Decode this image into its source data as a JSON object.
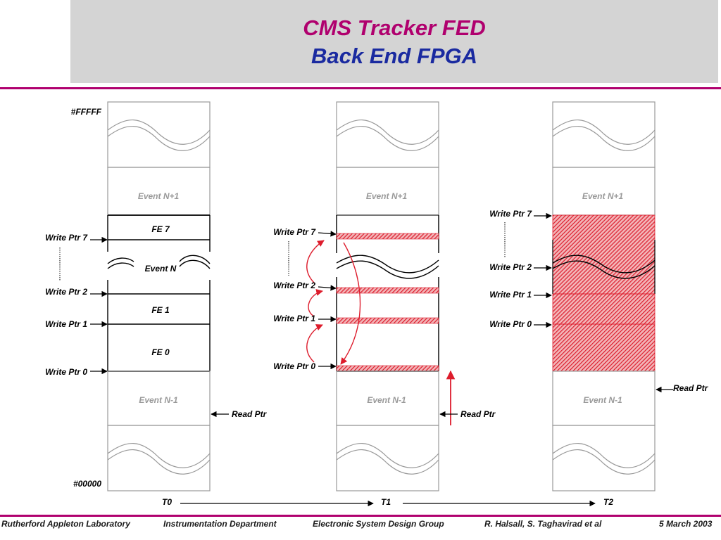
{
  "title": {
    "line1": "CMS Tracker FED",
    "line2": "Back End FPGA"
  },
  "colors": {
    "title_line1": "#b0006e",
    "title_line2": "#1a2aa0",
    "rule": "#b0006e",
    "hatch": "#dd1c2c",
    "arrow_red": "#dd1c2c"
  },
  "address": {
    "top": "#FFFFF",
    "bottom": "#00000"
  },
  "panels": [
    {
      "time": "T0",
      "event_next": "Event N+1",
      "event_prev": "Event N-1",
      "event_current": "Event N",
      "fe_labels": [
        "FE 7",
        "FE 1",
        "FE 0"
      ],
      "write_ptrs": [
        "Write Ptr 7",
        "Write Ptr 2",
        "Write Ptr 1",
        "Write Ptr 0"
      ],
      "read_ptr": "Read Ptr"
    },
    {
      "time": "T1",
      "event_next": "Event N+1",
      "event_prev": "Event N-1",
      "write_ptrs": [
        "Write Ptr 7",
        "Write Ptr 2",
        "Write Ptr 1",
        "Write Ptr 0"
      ],
      "read_ptr": "Read Ptr"
    },
    {
      "time": "T2",
      "event_next": "Event N+1",
      "event_prev": "Event N-1",
      "write_ptrs": [
        "Write Ptr 7",
        "Write Ptr 2",
        "Write Ptr 1",
        "Write Ptr 0"
      ],
      "read_ptr": "Read Ptr"
    }
  ],
  "footer": {
    "lab": "Rutherford Appleton Laboratory",
    "dept": "Instrumentation Department",
    "group": "Electronic System Design Group",
    "authors": "R. Halsall, S. Taghavirad et al",
    "date": "5 March 2003"
  }
}
